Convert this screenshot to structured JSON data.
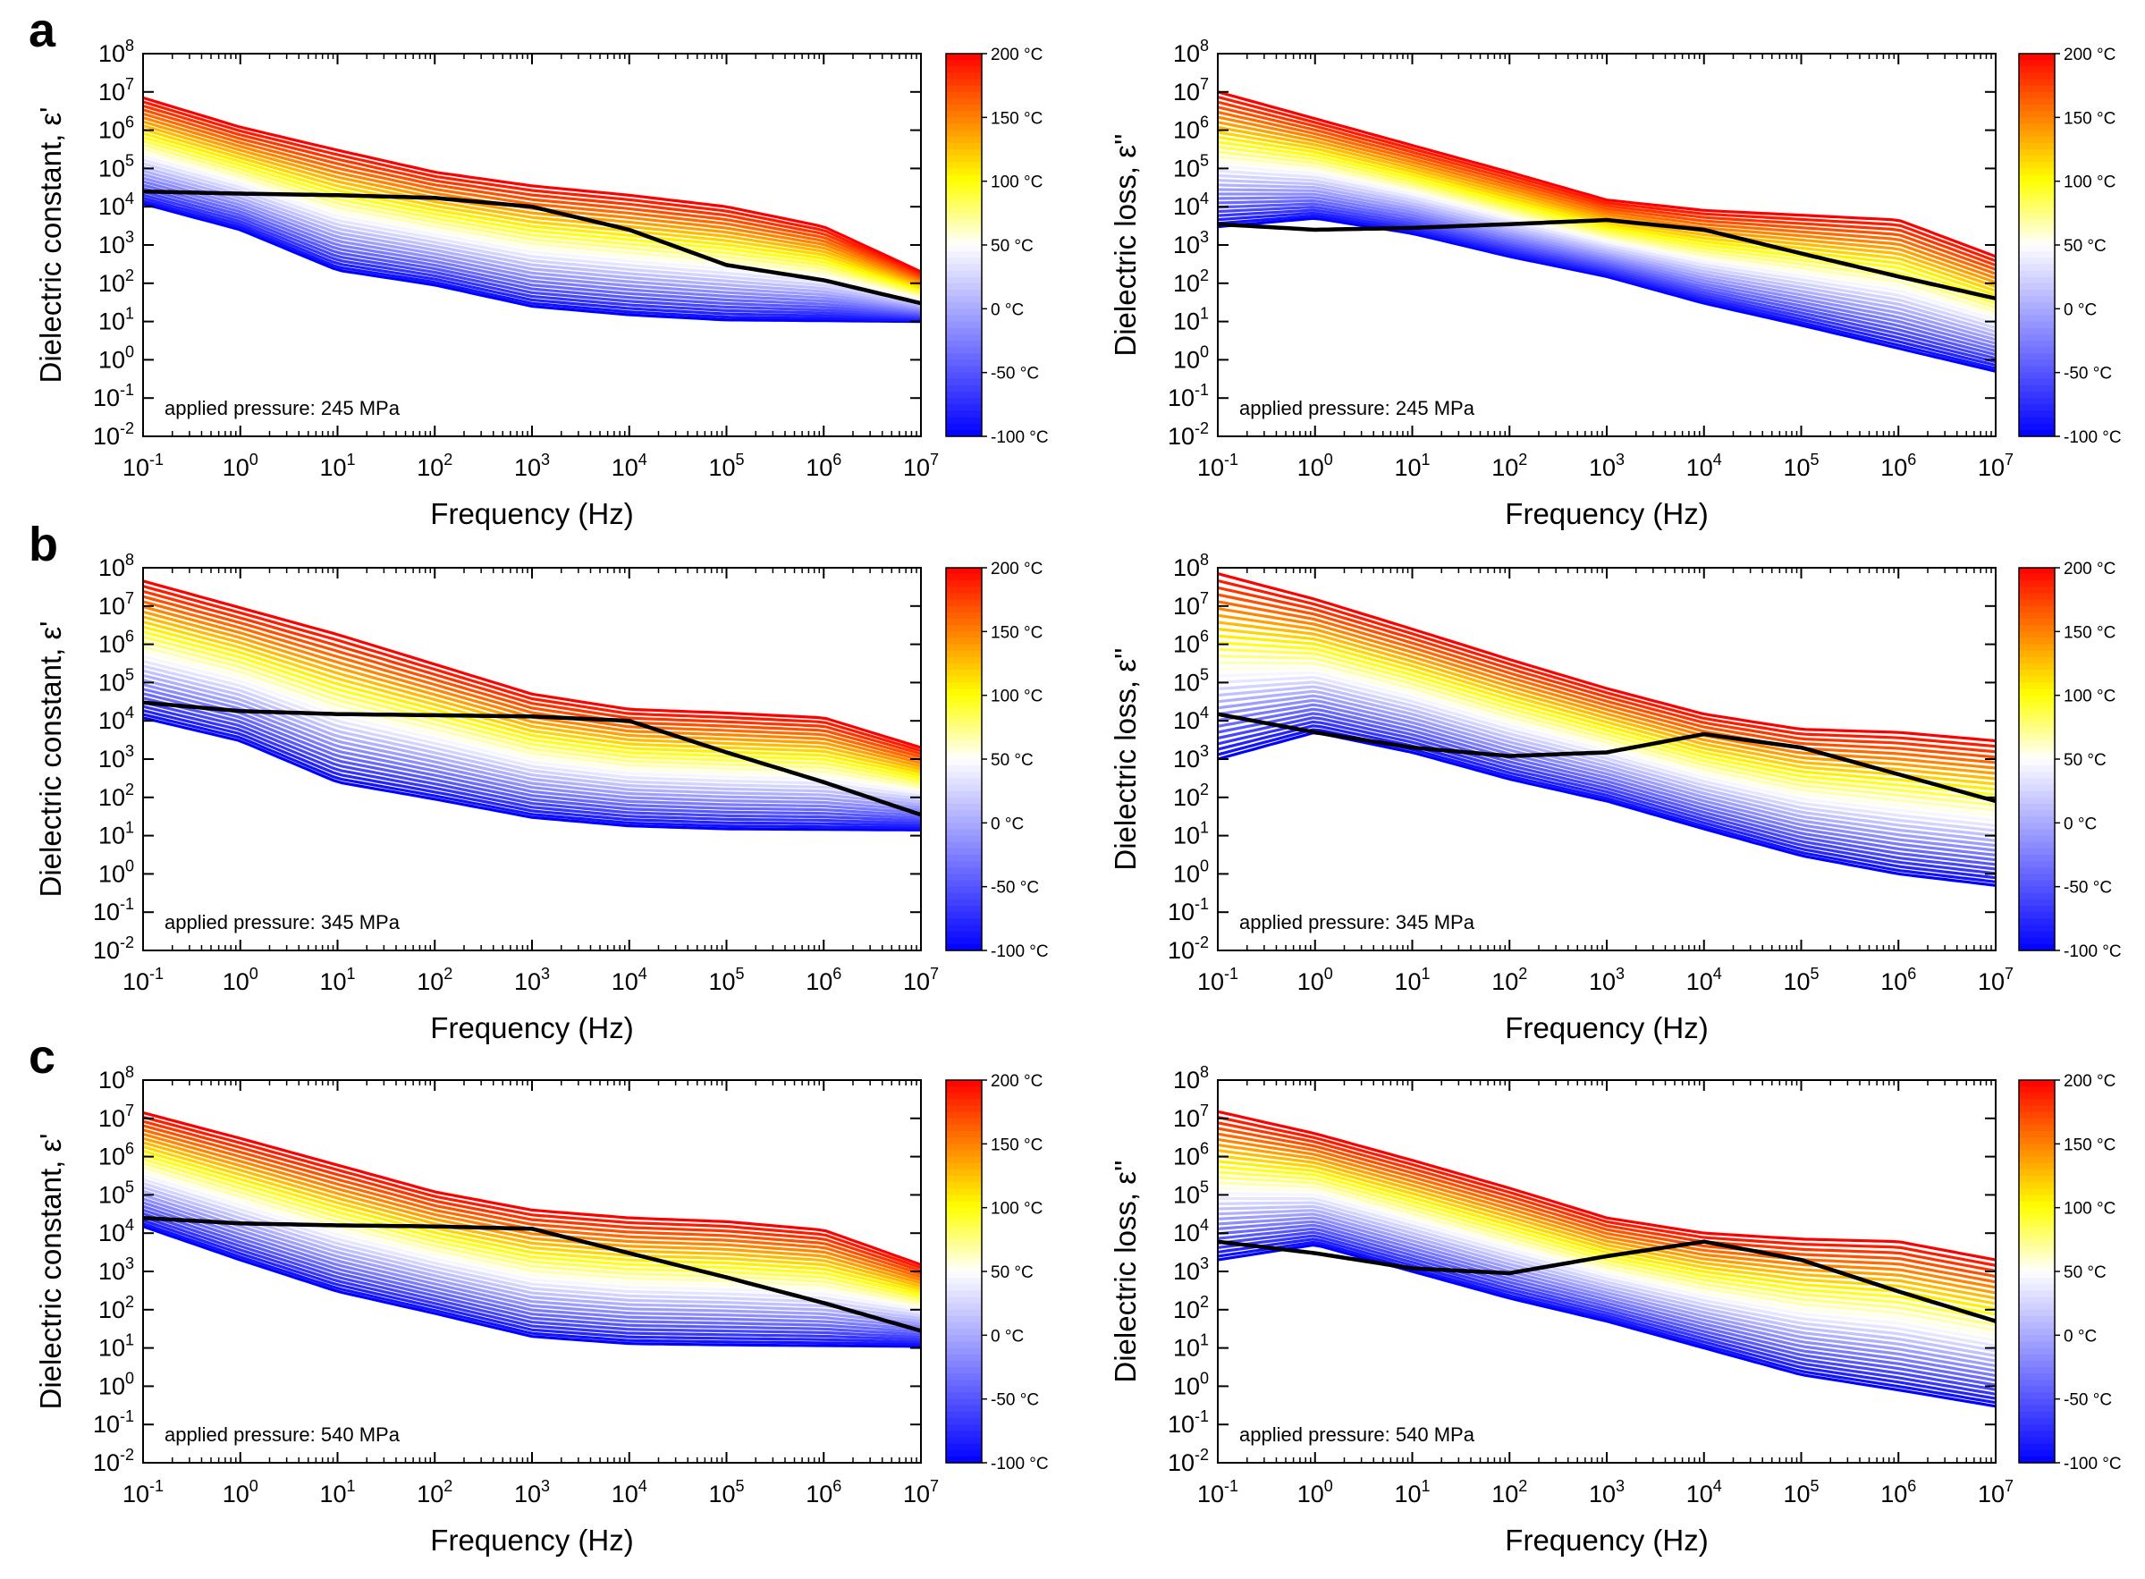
{
  "figure": {
    "rows": [
      {
        "letter": "a",
        "pressure_label": "applied pressure: 245 MPa"
      },
      {
        "letter": "b",
        "pressure_label": "applied pressure: 345 MPa"
      },
      {
        "letter": "c",
        "pressure_label": "applied pressure: 540 MPa"
      }
    ],
    "colorbar": {
      "labels": [
        "200 °C",
        "150 °C",
        "100 °C",
        "50 °C",
        "0 °C",
        "-50 °C",
        "-100 °C"
      ],
      "stops": [
        {
          "t": 0.0,
          "color": "#ff0000"
        },
        {
          "t": 0.33,
          "color": "#ffff00"
        },
        {
          "t": 0.5,
          "color": "#ffffff"
        },
        {
          "t": 1.0,
          "color": "#0000ff"
        }
      ]
    }
  },
  "chart_data": [
    {
      "type": "line",
      "panel": "a-left",
      "xlabel": "Frequency (Hz)",
      "ylabel": "Dielectric constant, ε'",
      "xlim": [
        0.1,
        10000000
      ],
      "ylim": [
        0.01,
        100000000
      ],
      "x_ticks": [
        "10^-1",
        "10^0",
        "10^1",
        "10^2",
        "10^3",
        "10^4",
        "10^5",
        "10^6",
        "10^7"
      ],
      "y_ticks": [
        "10^-2",
        "10^-1",
        "10^0",
        "10^1",
        "10^2",
        "10^3",
        "10^4",
        "10^5",
        "10^6",
        "10^7",
        "10^8"
      ],
      "annotation": "applied pressure: 245 MPa",
      "temperature_range_C": [
        -100,
        200
      ],
      "highlighted_curve": {
        "color": "#000000",
        "x": [
          0.1,
          1,
          10,
          100,
          1000,
          10000,
          100000,
          1000000,
          10000000
        ],
        "y": [
          25000,
          22000,
          20000,
          17000,
          10000,
          2500,
          300,
          120,
          30
        ]
      },
      "lowest_T_curve": {
        "x": [
          0.1,
          1,
          10,
          100,
          1000,
          10000,
          100000,
          10000000
        ],
        "y": [
          12000,
          2500,
          220,
          90,
          25,
          15,
          11,
          10
        ]
      },
      "highest_T_curve": {
        "x": [
          0.1,
          1,
          10,
          100,
          1000,
          10000,
          100000,
          1000000,
          10000000
        ],
        "y": [
          7000000,
          1200000,
          300000,
          80000,
          35000,
          20000,
          10000,
          3000,
          200
        ]
      }
    },
    {
      "type": "line",
      "panel": "a-right",
      "xlabel": "Frequency (Hz)",
      "ylabel": "Dielectric loss, ε''",
      "xlim": [
        0.1,
        10000000
      ],
      "ylim": [
        0.01,
        100000000
      ],
      "x_ticks": [
        "10^-1",
        "10^0",
        "10^1",
        "10^2",
        "10^3",
        "10^4",
        "10^5",
        "10^6",
        "10^7"
      ],
      "y_ticks": [
        "10^-2",
        "10^-1",
        "10^0",
        "10^1",
        "10^2",
        "10^3",
        "10^4",
        "10^5",
        "10^6",
        "10^7",
        "10^8"
      ],
      "annotation": "applied pressure: 245 MPa",
      "temperature_range_C": [
        -100,
        200
      ],
      "highlighted_curve": {
        "color": "#000000",
        "x": [
          0.1,
          1,
          10,
          100,
          1000,
          10000,
          100000,
          1000000,
          10000000
        ],
        "y": [
          3500,
          2500,
          2800,
          3500,
          4500,
          2500,
          600,
          150,
          40
        ]
      },
      "lowest_T_curve": {
        "x": [
          0.1,
          1,
          10,
          100,
          1000,
          10000,
          100000,
          1000000,
          10000000
        ],
        "y": [
          3000,
          5000,
          2000,
          500,
          150,
          30,
          8,
          2,
          0.5
        ]
      },
      "highest_T_curve": {
        "x": [
          0.1,
          1,
          10,
          100,
          1000,
          10000,
          100000,
          1000000,
          10000000
        ],
        "y": [
          10000000,
          2000000,
          400000,
          80000,
          15000,
          8000,
          6000,
          4500,
          500
        ]
      }
    },
    {
      "type": "line",
      "panel": "b-left",
      "xlabel": "Frequency (Hz)",
      "ylabel": "Dielectric constant, ε'",
      "xlim": [
        0.1,
        10000000
      ],
      "ylim": [
        0.01,
        100000000
      ],
      "x_ticks": [
        "10^-1",
        "10^0",
        "10^1",
        "10^2",
        "10^3",
        "10^4",
        "10^5",
        "10^6",
        "10^7"
      ],
      "y_ticks": [
        "10^-2",
        "10^-1",
        "10^0",
        "10^1",
        "10^2",
        "10^3",
        "10^4",
        "10^5",
        "10^6",
        "10^7",
        "10^8"
      ],
      "annotation": "applied pressure: 345 MPa",
      "temperature_range_C": [
        -100,
        200
      ],
      "highlighted_curve": {
        "color": "#000000",
        "x": [
          0.1,
          1,
          10,
          100,
          1000,
          10000,
          100000,
          1000000,
          10000000
        ],
        "y": [
          30000,
          18000,
          15000,
          14000,
          13000,
          10000,
          1500,
          250,
          35
        ]
      },
      "lowest_T_curve": {
        "x": [
          0.1,
          1,
          10,
          100,
          1000,
          10000,
          100000,
          10000000
        ],
        "y": [
          12000,
          3000,
          250,
          90,
          30,
          18,
          15,
          14
        ]
      },
      "highest_T_curve": {
        "x": [
          0.1,
          1,
          10,
          100,
          1000,
          10000,
          100000,
          1000000,
          10000000
        ],
        "y": [
          45000000,
          9000000,
          1800000,
          300000,
          50000,
          20000,
          16000,
          12000,
          2000
        ]
      }
    },
    {
      "type": "line",
      "panel": "b-right",
      "xlabel": "Frequency (Hz)",
      "ylabel": "Dielectric loss, ε''",
      "xlim": [
        0.1,
        10000000
      ],
      "ylim": [
        0.01,
        100000000
      ],
      "x_ticks": [
        "10^-1",
        "10^0",
        "10^1",
        "10^2",
        "10^3",
        "10^4",
        "10^5",
        "10^6",
        "10^7"
      ],
      "y_ticks": [
        "10^-2",
        "10^-1",
        "10^0",
        "10^1",
        "10^2",
        "10^3",
        "10^4",
        "10^5",
        "10^6",
        "10^7",
        "10^8"
      ],
      "annotation": "applied pressure: 345 MPa",
      "temperature_range_C": [
        -100,
        200
      ],
      "highlighted_curve": {
        "color": "#000000",
        "x": [
          0.1,
          1,
          10,
          100,
          1000,
          10000,
          100000,
          1000000,
          10000000
        ],
        "y": [
          15000,
          5000,
          2000,
          1200,
          1500,
          4500,
          2000,
          400,
          80
        ]
      },
      "lowest_T_curve": {
        "x": [
          0.1,
          1,
          10,
          100,
          1000,
          10000,
          100000,
          1000000,
          10000000
        ],
        "y": [
          1000,
          5000,
          1500,
          300,
          80,
          15,
          3,
          1,
          0.5
        ]
      },
      "highest_T_curve": {
        "x": [
          0.1,
          1,
          10,
          100,
          1000,
          10000,
          100000,
          1000000,
          10000000
        ],
        "y": [
          70000000,
          15000000,
          2500000,
          400000,
          70000,
          15000,
          6000,
          5000,
          3000
        ]
      }
    },
    {
      "type": "line",
      "panel": "c-left",
      "xlabel": "Frequency (Hz)",
      "ylabel": "Dielectric constant, ε'",
      "xlim": [
        0.1,
        10000000
      ],
      "ylim": [
        0.01,
        100000000
      ],
      "x_ticks": [
        "10^-1",
        "10^0",
        "10^1",
        "10^2",
        "10^3",
        "10^4",
        "10^5",
        "10^6",
        "10^7"
      ],
      "y_ticks": [
        "10^-2",
        "10^-1",
        "10^0",
        "10^1",
        "10^2",
        "10^3",
        "10^4",
        "10^5",
        "10^6",
        "10^7",
        "10^8"
      ],
      "annotation": "applied pressure: 540 MPa",
      "temperature_range_C": [
        -100,
        200
      ],
      "highlighted_curve": {
        "color": "#000000",
        "x": [
          0.1,
          1,
          10,
          100,
          1000,
          10000,
          100000,
          1000000,
          10000000
        ],
        "y": [
          25000,
          18000,
          16000,
          15000,
          13000,
          3000,
          700,
          150,
          28
        ]
      },
      "lowest_T_curve": {
        "x": [
          0.1,
          1,
          10,
          100,
          1000,
          10000,
          100000,
          10000000
        ],
        "y": [
          15000,
          2000,
          300,
          80,
          20,
          13,
          12,
          11
        ]
      },
      "highest_T_curve": {
        "x": [
          0.1,
          1,
          10,
          100,
          1000,
          10000,
          100000,
          1000000,
          10000000
        ],
        "y": [
          14000000,
          3000000,
          600000,
          120000,
          40000,
          25000,
          20000,
          12000,
          1500
        ]
      }
    },
    {
      "type": "line",
      "panel": "c-right",
      "xlabel": "Frequency (Hz)",
      "ylabel": "Dielectric loss, ε''",
      "xlim": [
        0.1,
        10000000
      ],
      "ylim": [
        0.01,
        100000000
      ],
      "x_ticks": [
        "10^-1",
        "10^0",
        "10^1",
        "10^2",
        "10^3",
        "10^4",
        "10^5",
        "10^6",
        "10^7"
      ],
      "y_ticks": [
        "10^-2",
        "10^-1",
        "10^0",
        "10^1",
        "10^2",
        "10^3",
        "10^4",
        "10^5",
        "10^6",
        "10^7",
        "10^8"
      ],
      "annotation": "applied pressure: 540 MPa",
      "temperature_range_C": [
        -100,
        200
      ],
      "highlighted_curve": {
        "color": "#000000",
        "x": [
          0.1,
          1,
          10,
          100,
          1000,
          10000,
          100000,
          1000000,
          10000000
        ],
        "y": [
          6000,
          3000,
          1200,
          900,
          2500,
          6000,
          2000,
          300,
          50
        ]
      },
      "lowest_T_curve": {
        "x": [
          0.1,
          1,
          10,
          100,
          1000,
          10000,
          100000,
          1000000,
          10000000
        ],
        "y": [
          2000,
          5000,
          1000,
          200,
          50,
          10,
          2,
          0.8,
          0.3
        ]
      },
      "highest_T_curve": {
        "x": [
          0.1,
          1,
          10,
          100,
          1000,
          10000,
          100000,
          1000000,
          10000000
        ],
        "y": [
          15000000,
          4000000,
          800000,
          150000,
          25000,
          10000,
          7000,
          6000,
          2000
        ]
      }
    }
  ]
}
